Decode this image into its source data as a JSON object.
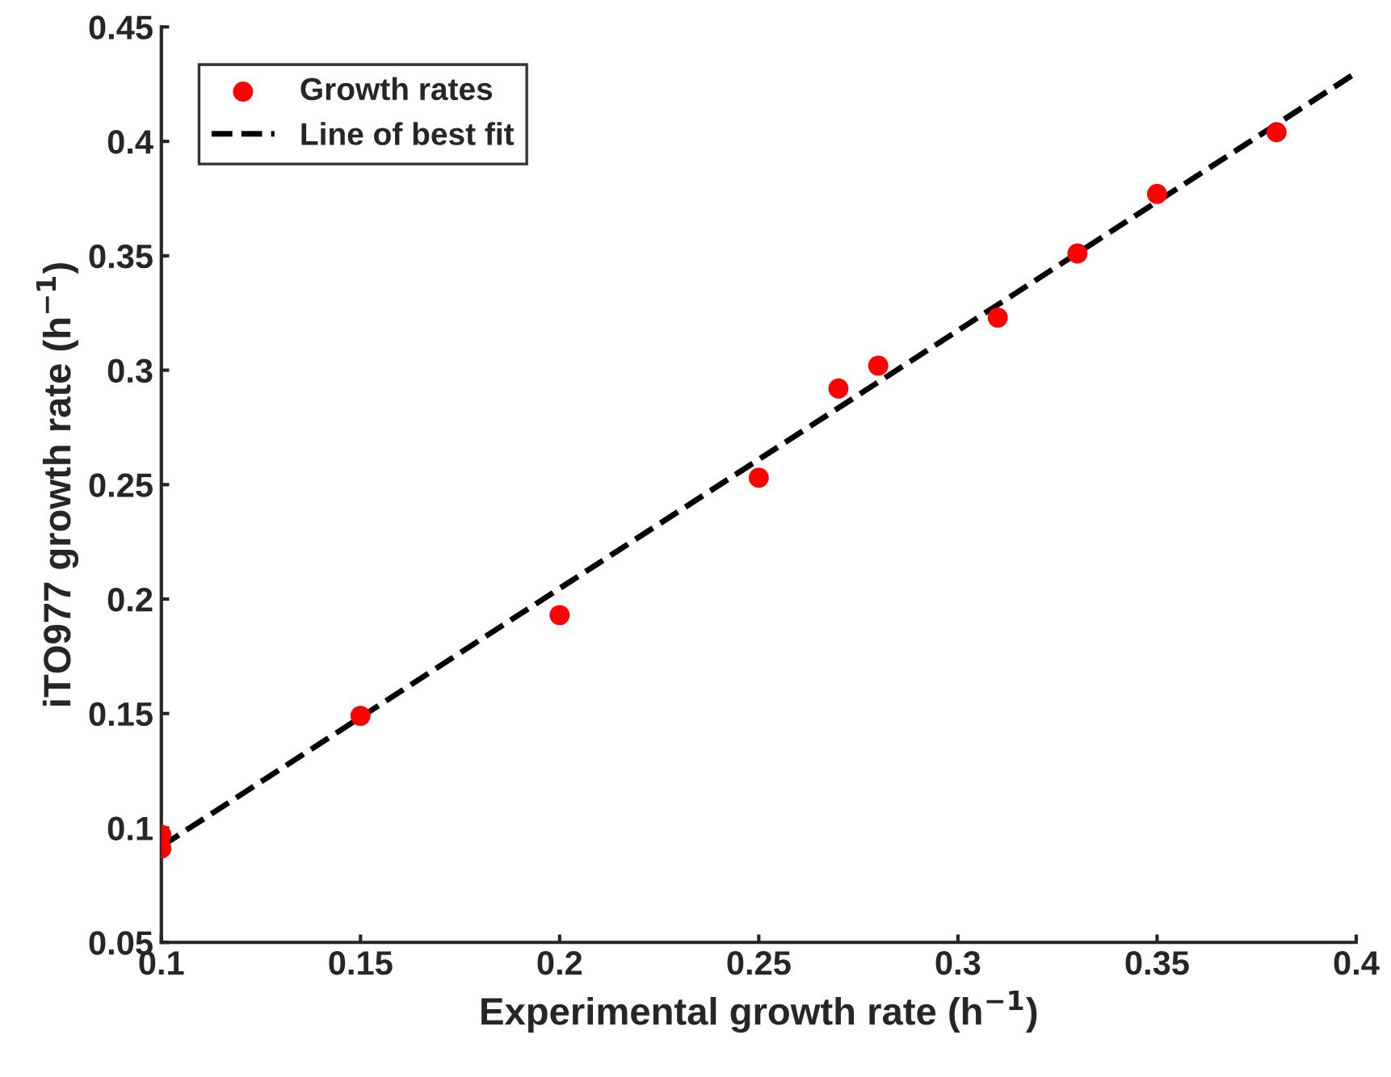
{
  "chart_data": {
    "type": "scatter",
    "xlabel": "Experimental growth rate (h$^{−1}$)",
    "ylabel": "iTO977 growth rate (h$^{−1}$)",
    "series": [
      {
        "name": "Growth rates",
        "color": "#ff0000",
        "marker": "circle",
        "x": [
          0.1,
          0.1,
          0.15,
          0.2,
          0.25,
          0.27,
          0.28,
          0.31,
          0.33,
          0.35,
          0.38
        ],
        "values": [
          0.097,
          0.091,
          0.149,
          0.193,
          0.253,
          0.292,
          0.302,
          0.323,
          0.351,
          0.377,
          0.404
        ]
      },
      {
        "name": "Line of best fit",
        "type": "line",
        "color": "#000000",
        "line_style": "dashed",
        "x": [
          0.1,
          0.4
        ],
        "values": [
          0.092,
          0.43
        ]
      }
    ],
    "xlim": [
      0.1,
      0.4
    ],
    "xticks": [
      0.1,
      0.15,
      0.2,
      0.25,
      0.3,
      0.35,
      0.4
    ],
    "ylim": [
      0.05,
      0.45
    ],
    "yticks": [
      0.05,
      0.1,
      0.15,
      0.2,
      0.25,
      0.3,
      0.35,
      0.4,
      0.45
    ],
    "grid": false,
    "legend": "top left"
  }
}
